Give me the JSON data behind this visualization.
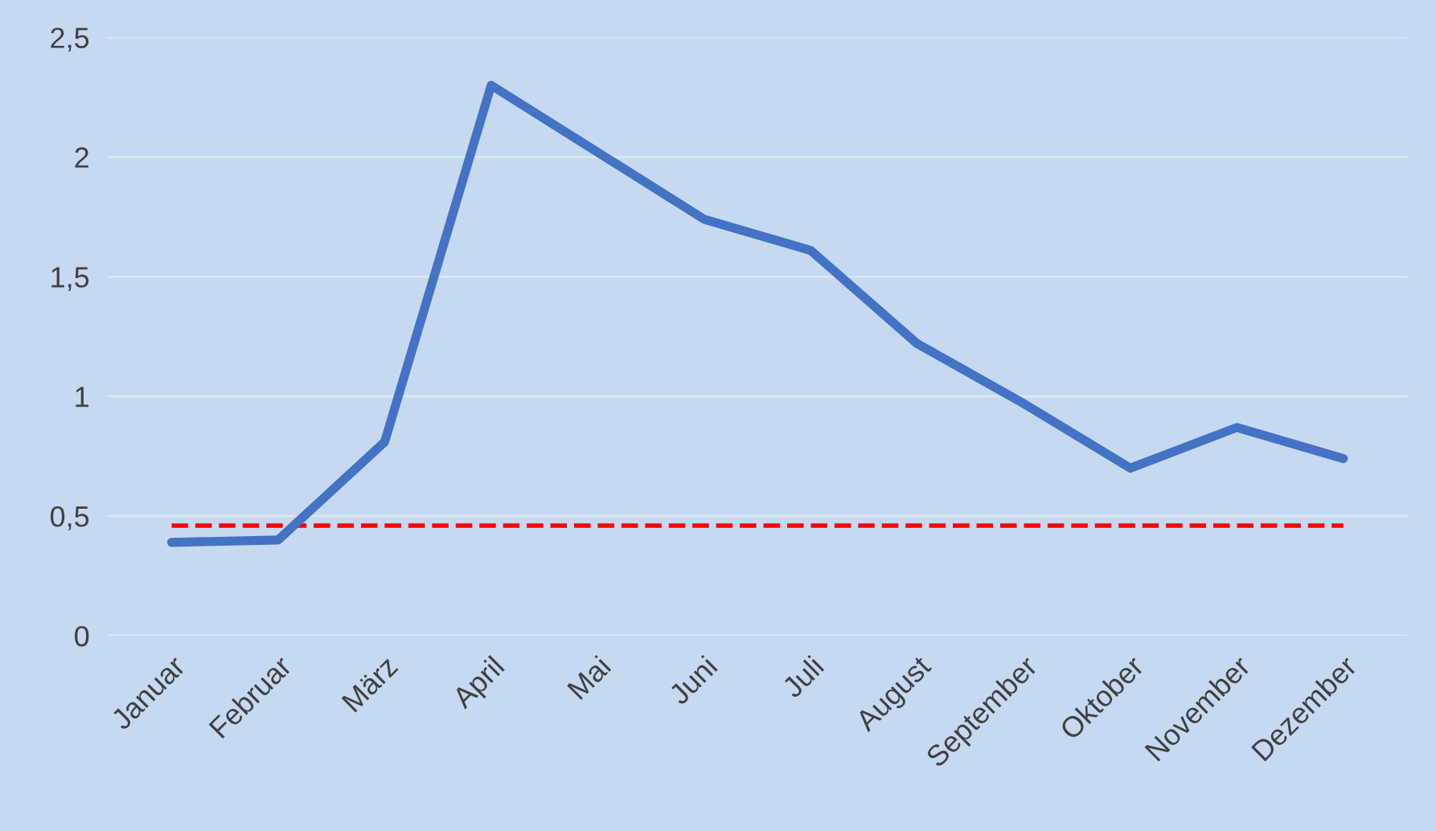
{
  "chart_data": {
    "type": "line",
    "categories": [
      "Januar",
      "Februar",
      "März",
      "April",
      "Mai",
      "Juni",
      "Juli",
      "August",
      "September",
      "Oktober",
      "November",
      "Dezember"
    ],
    "series": [
      {
        "color": "#4472c4",
        "values": [
          0.39,
          0.4,
          0.81,
          2.3,
          2.02,
          1.74,
          1.61,
          1.22,
          0.97,
          0.7,
          0.87,
          0.74
        ]
      }
    ],
    "ylim": [
      0,
      2.5
    ],
    "yticks": [
      {
        "value": 0,
        "label": "0"
      },
      {
        "value": 0.5,
        "label": "0,5"
      },
      {
        "value": 1,
        "label": "1"
      },
      {
        "value": 1.5,
        "label": "1,5"
      },
      {
        "value": 2,
        "label": "2"
      },
      {
        "value": 2.5,
        "label": "2,5"
      }
    ],
    "ref_lines": [
      {
        "axis": "y",
        "value": 0.46,
        "color": "#ff0000",
        "line_style": "dashed"
      }
    ],
    "grid": "y",
    "marker": "none",
    "line_style": "solid"
  }
}
